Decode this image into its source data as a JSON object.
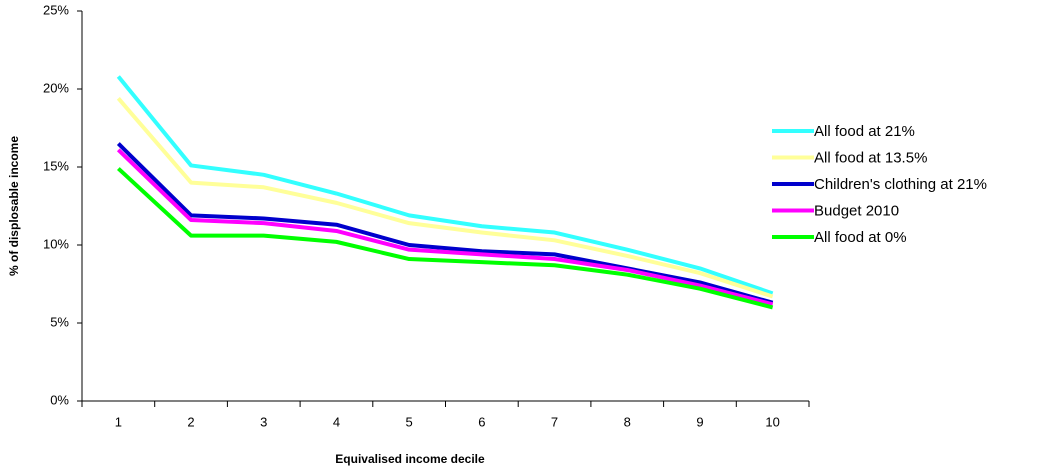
{
  "chart_data": {
    "type": "line",
    "y_axis_label": "% of displosable income",
    "x_axis_label": "Equivalised income decile",
    "categories": [
      "1",
      "2",
      "3",
      "4",
      "5",
      "6",
      "7",
      "8",
      "9",
      "10"
    ],
    "ylim": [
      0,
      25
    ],
    "yticks": [
      {
        "value": 0,
        "label": "0%"
      },
      {
        "value": 5,
        "label": "5%"
      },
      {
        "value": 10,
        "label": "10%"
      },
      {
        "value": 15,
        "label": "15%"
      },
      {
        "value": 20,
        "label": "20%"
      },
      {
        "value": 25,
        "label": "25%"
      }
    ],
    "legend": "right",
    "series": [
      {
        "name": "All food at 21%",
        "color": "#33ffff",
        "values": [
          20.8,
          15.1,
          14.5,
          13.3,
          11.9,
          11.2,
          10.8,
          9.7,
          8.5,
          6.9
        ]
      },
      {
        "name": "All food at 13.5%",
        "color": "#ffff99",
        "values": [
          19.4,
          14.0,
          13.7,
          12.7,
          11.4,
          10.8,
          10.3,
          9.3,
          8.2,
          6.7
        ]
      },
      {
        "name": "Children's clothing at 21%",
        "color": "#0000cc",
        "values": [
          16.5,
          11.9,
          11.7,
          11.3,
          10.0,
          9.6,
          9.4,
          8.5,
          7.6,
          6.3
        ]
      },
      {
        "name": "Budget 2010",
        "color": "#ff00ff",
        "values": [
          16.1,
          11.6,
          11.4,
          10.9,
          9.7,
          9.4,
          9.1,
          8.4,
          7.4,
          6.2
        ]
      },
      {
        "name": "All food at 0%",
        "color": "#00ff00",
        "values": [
          14.9,
          10.6,
          10.6,
          10.2,
          9.1,
          8.9,
          8.7,
          8.1,
          7.2,
          6.0
        ]
      }
    ]
  }
}
